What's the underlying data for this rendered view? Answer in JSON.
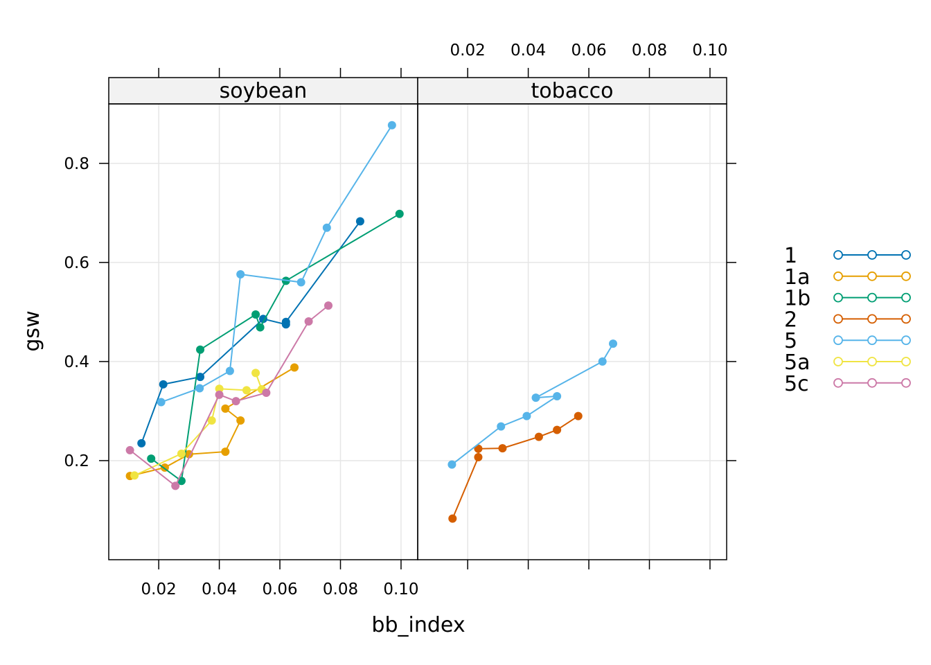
{
  "chart_data": {
    "type": "line",
    "xlabel": "bb_index",
    "ylabel": "gsw",
    "xlim": [
      0.0035,
      0.1055
    ],
    "ylim": [
      0.0,
      0.92
    ],
    "x_ticks": [
      0.02,
      0.04,
      0.06,
      0.08,
      0.1
    ],
    "x_tick_labels": [
      "0.02",
      "0.04",
      "0.06",
      "0.08",
      "0.10"
    ],
    "y_ticks": [
      0.2,
      0.4,
      0.6,
      0.8
    ],
    "y_tick_labels": [
      "0.2",
      "0.4",
      "0.6",
      "0.8"
    ],
    "grid": true,
    "legend_position": "right",
    "colors": {
      "1": "#0072B2",
      "1a": "#E69F00",
      "1b": "#009E73",
      "2": "#D55E00",
      "5": "#56B4E9",
      "5a": "#F0E442",
      "5c": "#CC79A7"
    },
    "legend": [
      "1",
      "1a",
      "1b",
      "2",
      "5",
      "5a",
      "5c"
    ],
    "panels": [
      {
        "strip": "soybean",
        "series": [
          {
            "name": "1",
            "points": [
              [
                0.0143,
                0.235
              ],
              [
                0.0215,
                0.354
              ],
              [
                0.0337,
                0.369
              ],
              [
                0.0545,
                0.486
              ],
              [
                0.062,
                0.475
              ],
              [
                0.062,
                0.48
              ],
              [
                0.0865,
                0.683
              ]
            ]
          },
          {
            "name": "1a",
            "points": [
              [
                0.0105,
                0.169
              ],
              [
                0.022,
                0.186
              ],
              [
                0.03,
                0.213
              ],
              [
                0.042,
                0.218
              ],
              [
                0.047,
                0.281
              ],
              [
                0.042,
                0.305
              ],
              [
                0.0648,
                0.388
              ]
            ]
          },
          {
            "name": "1b",
            "points": [
              [
                0.0175,
                0.204
              ],
              [
                0.0275,
                0.159
              ],
              [
                0.0337,
                0.424
              ],
              [
                0.052,
                0.495
              ],
              [
                0.0535,
                0.469
              ],
              [
                0.062,
                0.563
              ],
              [
                0.0995,
                0.698
              ]
            ]
          },
          {
            "name": "5",
            "points": [
              [
                0.0208,
                0.318
              ],
              [
                0.0335,
                0.346
              ],
              [
                0.0435,
                0.381
              ],
              [
                0.047,
                0.576
              ],
              [
                0.067,
                0.56
              ],
              [
                0.0755,
                0.67
              ],
              [
                0.097,
                0.877
              ]
            ]
          },
          {
            "name": "5a",
            "points": [
              [
                0.012,
                0.17
              ],
              [
                0.0275,
                0.214
              ],
              [
                0.0375,
                0.281
              ],
              [
                0.04,
                0.345
              ],
              [
                0.049,
                0.342
              ],
              [
                0.054,
                0.344
              ],
              [
                0.052,
                0.377
              ]
            ]
          },
          {
            "name": "5c",
            "points": [
              [
                0.0105,
                0.221
              ],
              [
                0.0255,
                0.149
              ],
              [
                0.04,
                0.333
              ],
              [
                0.0455,
                0.32
              ],
              [
                0.0555,
                0.337
              ],
              [
                0.0695,
                0.481
              ],
              [
                0.076,
                0.513
              ]
            ]
          }
        ]
      },
      {
        "strip": "tobacco",
        "series": [
          {
            "name": "2",
            "points": [
              [
                0.015,
                0.083
              ],
              [
                0.0235,
                0.207
              ],
              [
                0.0235,
                0.224
              ],
              [
                0.0315,
                0.225
              ],
              [
                0.0435,
                0.248
              ],
              [
                0.0495,
                0.262
              ],
              [
                0.0565,
                0.29
              ]
            ]
          },
          {
            "name": "5",
            "points": [
              [
                0.0148,
                0.192
              ],
              [
                0.031,
                0.269
              ],
              [
                0.0395,
                0.29
              ],
              [
                0.0495,
                0.33
              ],
              [
                0.0425,
                0.327
              ],
              [
                0.0645,
                0.4
              ],
              [
                0.068,
                0.436
              ]
            ]
          }
        ]
      }
    ]
  }
}
